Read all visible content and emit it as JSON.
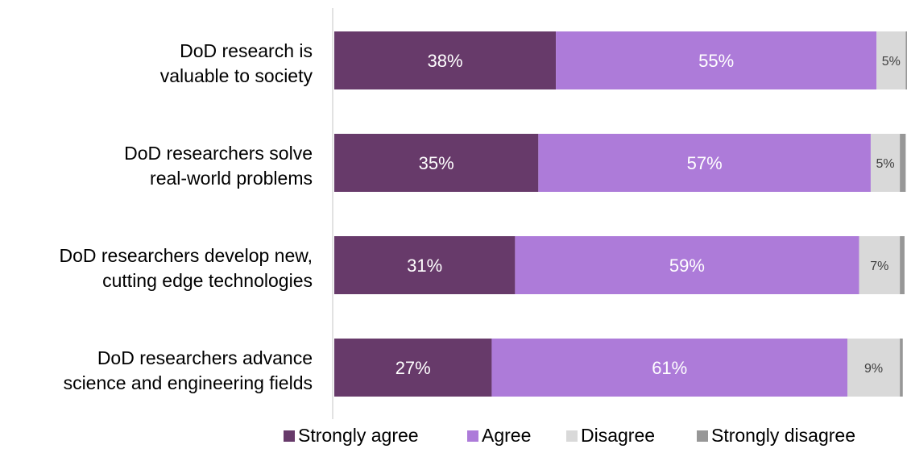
{
  "chart_data": {
    "type": "bar",
    "orientation": "horizontal",
    "stacked": true,
    "categories": [
      [
        "DoD research is",
        "valuable to society"
      ],
      [
        "DoD researchers solve",
        "real-world problems"
      ],
      [
        "DoD researchers develop new,",
        "cutting edge technologies"
      ],
      [
        "DoD researchers advance",
        "science and engineering fields"
      ]
    ],
    "series": [
      {
        "name": "Strongly agree",
        "color": "#673A6A",
        "values": [
          38,
          35,
          31,
          27
        ],
        "labels": [
          "38%",
          "35%",
          "31%",
          "27%"
        ]
      },
      {
        "name": "Agree",
        "color": "#AD7BD9",
        "values": [
          55,
          57,
          59,
          61
        ],
        "labels": [
          "55%",
          "57%",
          "59%",
          "61%"
        ]
      },
      {
        "name": "Disagree",
        "color": "#D9D9D9",
        "values": [
          5,
          5,
          7,
          9
        ],
        "labels": [
          "5%",
          "5%",
          "7%",
          "9%"
        ]
      },
      {
        "name": "Strongly disagree",
        "color": "#979797",
        "values": [
          0.5,
          1,
          0.8,
          0.5
        ],
        "labels": [
          "",
          "",
          "",
          ""
        ]
      }
    ],
    "xlim": [
      0,
      98.5
    ],
    "grid": false,
    "legend_position": "bottom"
  }
}
